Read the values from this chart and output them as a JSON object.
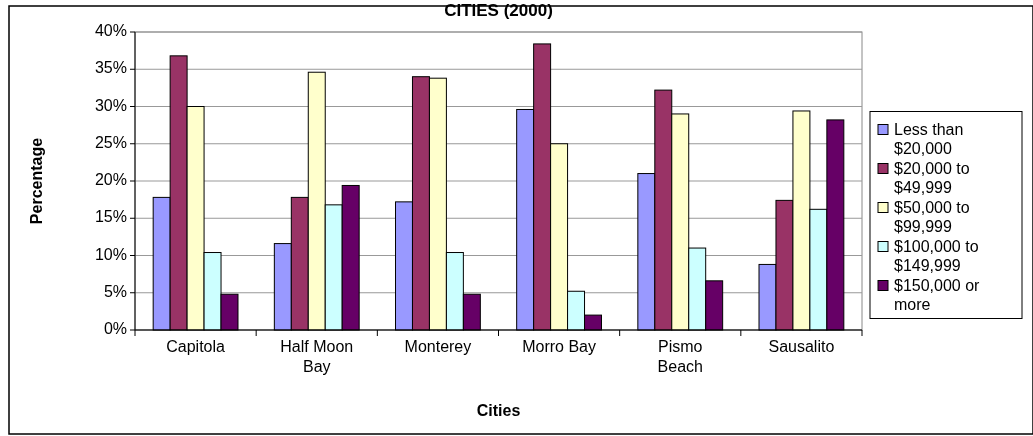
{
  "chart_data": {
    "type": "bar",
    "title": "CITIES (2000)",
    "xlabel": "Cities",
    "ylabel": "Percentage",
    "categories": [
      "Capitola",
      "Half Moon Bay",
      "Monterey",
      "Morro Bay",
      "Pismo Beach",
      "Sausalito"
    ],
    "series": [
      {
        "name": "Less than $20,000",
        "color": "#9999ff",
        "values": [
          17.8,
          11.6,
          17.2,
          29.6,
          21,
          8.8
        ]
      },
      {
        "name": "$20,000 to $49,999",
        "color": "#993366",
        "values": [
          36.8,
          17.8,
          34,
          38.4,
          32.2,
          17.4
        ]
      },
      {
        "name": "$50,000 to $99,999",
        "color": "#ffffcc",
        "values": [
          30,
          34.6,
          33.8,
          25,
          29,
          29.4
        ]
      },
      {
        "name": "$100,000 to $149,999",
        "color": "#ccffff",
        "values": [
          10.4,
          16.8,
          10.4,
          5.2,
          11,
          16.2
        ]
      },
      {
        "name": "$150,000 or more",
        "color": "#660066",
        "values": [
          4.8,
          19.4,
          4.8,
          2,
          6.6,
          28.2
        ]
      }
    ],
    "ylim": [
      0,
      40
    ],
    "yticks": [
      {
        "value": 0,
        "label": "0%"
      },
      {
        "value": 5,
        "label": "5%"
      },
      {
        "value": 10,
        "label": "10%"
      },
      {
        "value": 15,
        "label": "15%"
      },
      {
        "value": 20,
        "label": "20%"
      },
      {
        "value": 25,
        "label": "25%"
      },
      {
        "value": 30,
        "label": "30%"
      },
      {
        "value": 35,
        "label": "35%"
      },
      {
        "value": 40,
        "label": "40%"
      }
    ],
    "grid": "y",
    "legend": "right"
  }
}
